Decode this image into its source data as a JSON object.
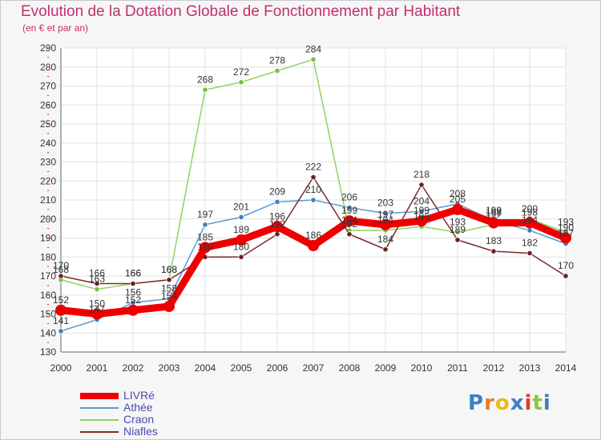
{
  "title": "Evolution de la Dotation Globale de Fonctionnement par Habitant",
  "subtitle": "(en € et par an)",
  "logo": "Proxiti",
  "chart_data": {
    "type": "line",
    "title": "Evolution de la Dotation Globale de Fonctionnement par Habitant",
    "subtitle": "(en € et par an)",
    "x": [
      "2000",
      "2001",
      "2002",
      "2003",
      "2004",
      "2005",
      "2006",
      "2007",
      "2008",
      "2009",
      "2010",
      "2011",
      "2012",
      "2013",
      "2014"
    ],
    "ylim": [
      130,
      290
    ],
    "yticks": [
      130,
      140,
      150,
      160,
      170,
      180,
      190,
      200,
      210,
      220,
      230,
      240,
      250,
      260,
      270,
      280,
      290
    ],
    "grid": true,
    "legend_position": "bottom-left",
    "series": [
      {
        "name": "Athée",
        "color": "#5a9bd5",
        "point_color": "#3a7fc0",
        "values": [
          141,
          147,
          156,
          158,
          197,
          201,
          209,
          210,
          206,
          203,
          204,
          208,
          199,
          194,
          187
        ]
      },
      {
        "name": "Craon",
        "color": "#8fd462",
        "point_color": "#76c044",
        "values": [
          168,
          163,
          166,
          168,
          268,
          272,
          278,
          284,
          194,
          194,
          196,
          193,
          197,
          200,
          193
        ]
      },
      {
        "name": "Niafles",
        "color": "#7a2b2b",
        "point_color": "#6b1f1f",
        "values": [
          170,
          166,
          166,
          168,
          180,
          180,
          192,
          222,
          192,
          184,
          218,
          189,
          183,
          182,
          170
        ]
      },
      {
        "name": "LIVRé",
        "color": "#ee0000",
        "point_color": "#ee0000",
        "bold": true,
        "values": [
          152,
          150,
          152,
          154,
          185,
          189,
          196,
          186,
          199,
          197,
          199,
          205,
          198,
          198,
          190
        ]
      }
    ],
    "legend_order": [
      "LIVRé",
      "Athée",
      "Craon",
      "Niafles"
    ]
  }
}
